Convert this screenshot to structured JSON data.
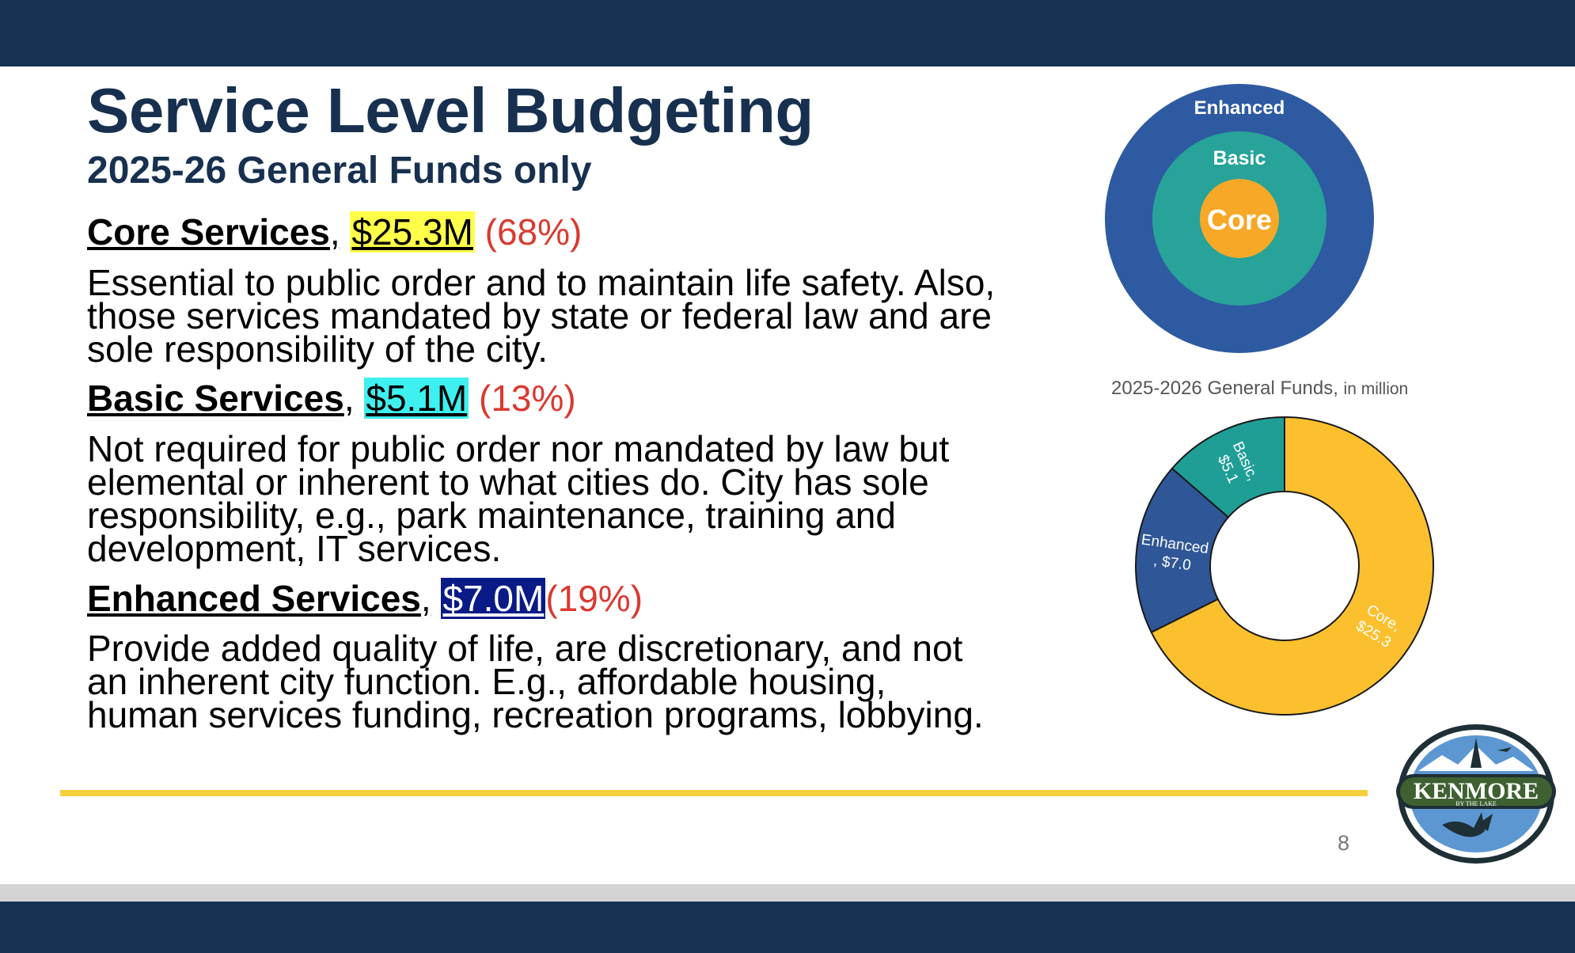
{
  "slide": {
    "title": "Service Level Budgeting",
    "subtitle": "2025-26 General Funds only",
    "page_number": "8"
  },
  "sections": [
    {
      "name": "Core Services",
      "separator": ",",
      "amount": "$25.3M",
      "percent": "(68%)",
      "description": "Essential to public order and to maintain life safety. Also, those services mandated by state or federal law and are sole responsibility of the city."
    },
    {
      "name": "Basic Services",
      "separator": ",",
      "amount": "$5.1M",
      "percent": "(13%)",
      "description": "Not required for public order nor mandated by law but elemental or inherent to what cities do. City has sole responsibility, e.g., park maintenance, training and development, IT services."
    },
    {
      "name": "Enhanced Services",
      "separator": ",",
      "amount": "$7.0M",
      "percent": "(19%)",
      "description": "Provide added quality of life, are discretionary, and not an inherent city function. E.g., affordable housing, human services funding, recreation programs, lobbying."
    }
  ],
  "concentric_diagram": {
    "outer_label": "Enhanced",
    "middle_label": "Basic",
    "inner_label": "Core"
  },
  "chart_data": {
    "type": "pie",
    "title": "2025-2026 General Funds,",
    "title_suffix": "in million",
    "categories": [
      "Core",
      "Enhanced",
      "Basic"
    ],
    "values": [
      25.3,
      7.0,
      5.1
    ],
    "labels": [
      [
        "Core,",
        "$25.3"
      ],
      [
        "Enhanced",
        ", $7.0"
      ],
      [
        "Basic,",
        "$5.1"
      ]
    ],
    "colors": [
      "#fcc02e",
      "#2f5797",
      "#1f9e96"
    ],
    "donut": true
  },
  "logo": {
    "name": "KENMORE",
    "tagline": "BY THE LAKE"
  },
  "colors": {
    "navy": "#163152",
    "title": "#17304f",
    "accent_line": "#f5cf3c",
    "percent_red": "#d93a31",
    "highlight_core": "#ffff4a",
    "highlight_basic": "#3ef0f0",
    "highlight_enhanced": "#0a1a87"
  }
}
